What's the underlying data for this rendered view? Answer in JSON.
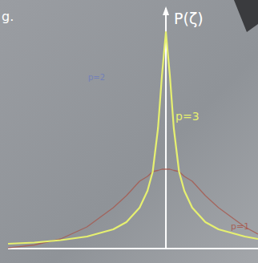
{
  "chart_data": {
    "type": "line",
    "y_label": "P(ζ)",
    "annotations": [
      {
        "text": "g.",
        "color": "#ffffff"
      },
      {
        "text": "p=2",
        "color": "#5a6fd0"
      }
    ],
    "x": [
      -6,
      -5,
      -4,
      -3,
      -2,
      -1.5,
      -1,
      -0.7,
      -0.5,
      -0.3,
      -0.15,
      0,
      0.15,
      0.3,
      0.5,
      0.7,
      1,
      1.5,
      2,
      3,
      3.5
    ],
    "series": [
      {
        "name": "p=3",
        "color": "#e6f070",
        "values": [
          0.02,
          0.025,
          0.035,
          0.05,
          0.08,
          0.11,
          0.17,
          0.24,
          0.32,
          0.5,
          0.72,
          0.9,
          0.72,
          0.5,
          0.32,
          0.24,
          0.17,
          0.11,
          0.08,
          0.05,
          0.04
        ]
      },
      {
        "name": "p=1",
        "color": "#a8584c",
        "values": [
          0.003,
          0.015,
          0.04,
          0.09,
          0.17,
          0.22,
          0.28,
          0.3,
          0.32,
          0.325,
          0.33,
          0.33,
          0.33,
          0.325,
          0.32,
          0.3,
          0.28,
          0.22,
          0.17,
          0.09,
          0.06
        ]
      }
    ],
    "xlim": [
      -6,
      3.5
    ],
    "ylim": [
      0,
      1
    ],
    "tick_labels": false,
    "grid": false
  }
}
